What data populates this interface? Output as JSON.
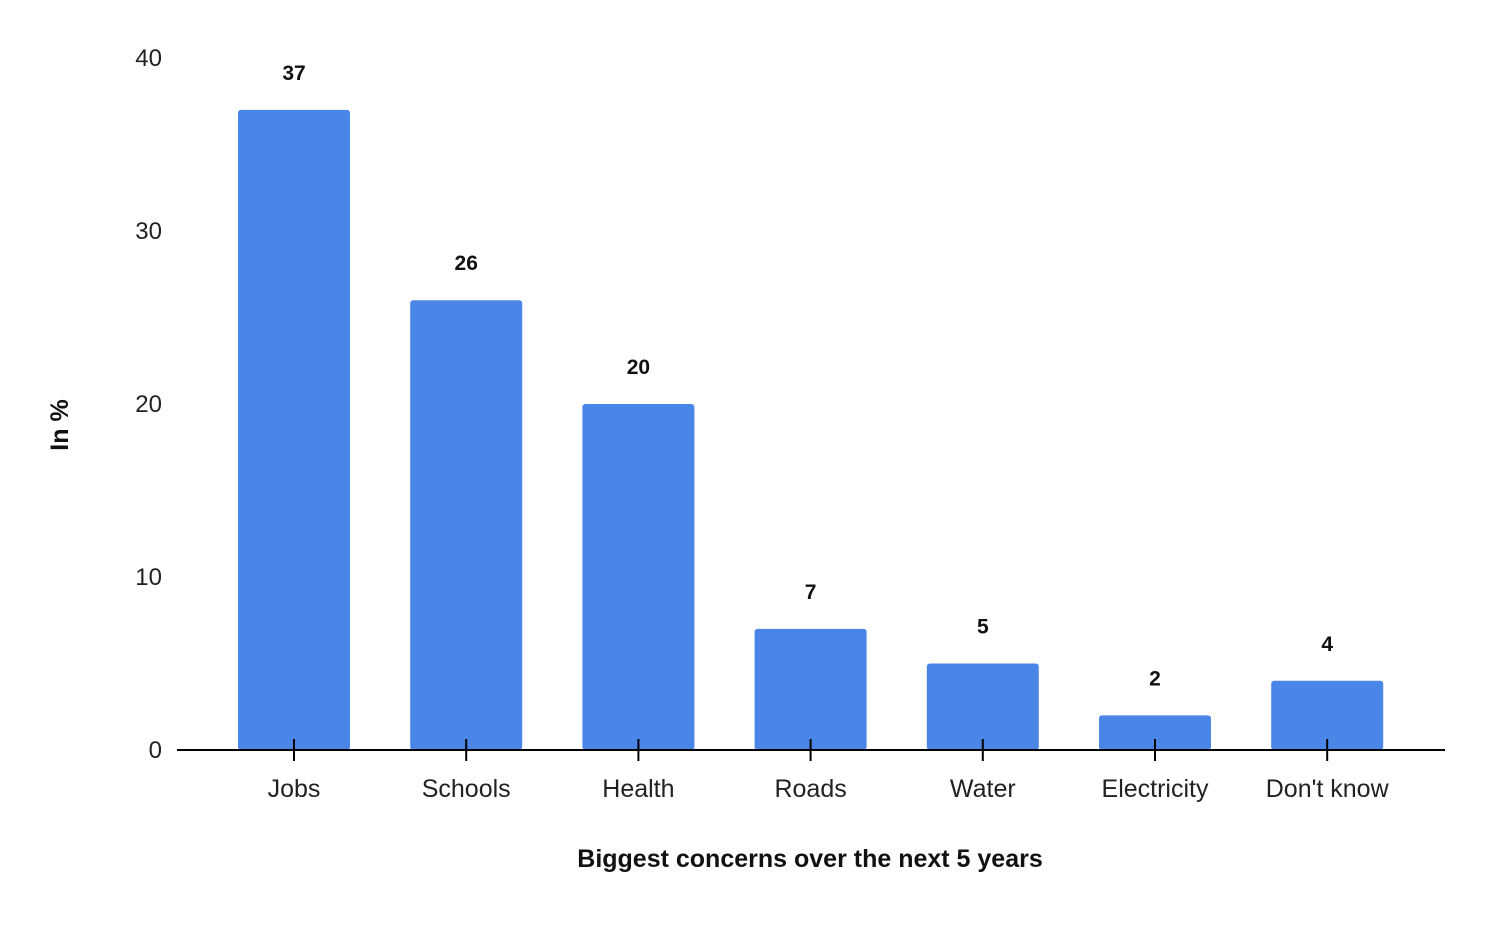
{
  "chart_data": {
    "type": "bar",
    "categories": [
      "Jobs",
      "Schools",
      "Health",
      "Roads",
      "Water",
      "Electricity",
      "Don't know"
    ],
    "values": [
      37,
      26,
      20,
      7,
      5,
      2,
      4
    ],
    "data_labels": [
      "37",
      "26",
      "20",
      "7",
      "5",
      "2",
      "4"
    ],
    "xlabel": "Biggest concerns over the next 5 years",
    "ylabel": "In %",
    "ylim": [
      0,
      40
    ],
    "yticks": [
      0,
      10,
      20,
      30,
      40
    ],
    "grid": false,
    "legend": "none",
    "bar_color": "#4a86e8"
  }
}
